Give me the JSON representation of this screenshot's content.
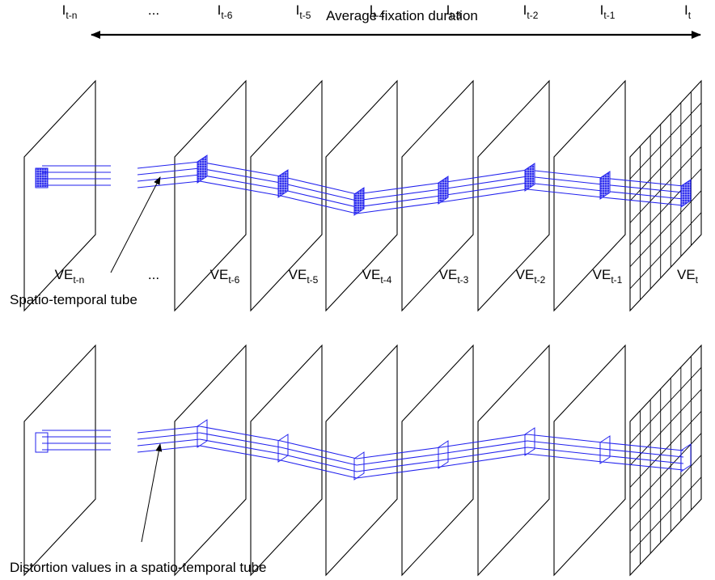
{
  "title": "Average fixation duration",
  "ellipsis": "...",
  "top_row": {
    "frame_labels": [
      {
        "base": "I",
        "sub": "t-n"
      },
      {
        "base": "I",
        "sub": "t-6"
      },
      {
        "base": "I",
        "sub": "t-5"
      },
      {
        "base": "I",
        "sub": "t-4"
      },
      {
        "base": "I",
        "sub": "t-3"
      },
      {
        "base": "I",
        "sub": "t-2"
      },
      {
        "base": "I",
        "sub": "t-1"
      },
      {
        "base": "I",
        "sub": "t"
      }
    ],
    "annotation": "Spatio-temporal tube"
  },
  "bottom_row": {
    "frame_labels": [
      {
        "base": "VE",
        "sub": "t-n"
      },
      {
        "base": "VE",
        "sub": "t-6"
      },
      {
        "base": "VE",
        "sub": "t-5"
      },
      {
        "base": "VE",
        "sub": "t-4"
      },
      {
        "base": "VE",
        "sub": "t-3"
      },
      {
        "base": "VE",
        "sub": "t-2"
      },
      {
        "base": "VE",
        "sub": "t-1"
      },
      {
        "base": "VE",
        "sub": "t"
      }
    ],
    "annotation": "Distortion values in a spatio-temporal tube"
  },
  "colors": {
    "tube": "#2222ee",
    "frame": "#000000"
  }
}
